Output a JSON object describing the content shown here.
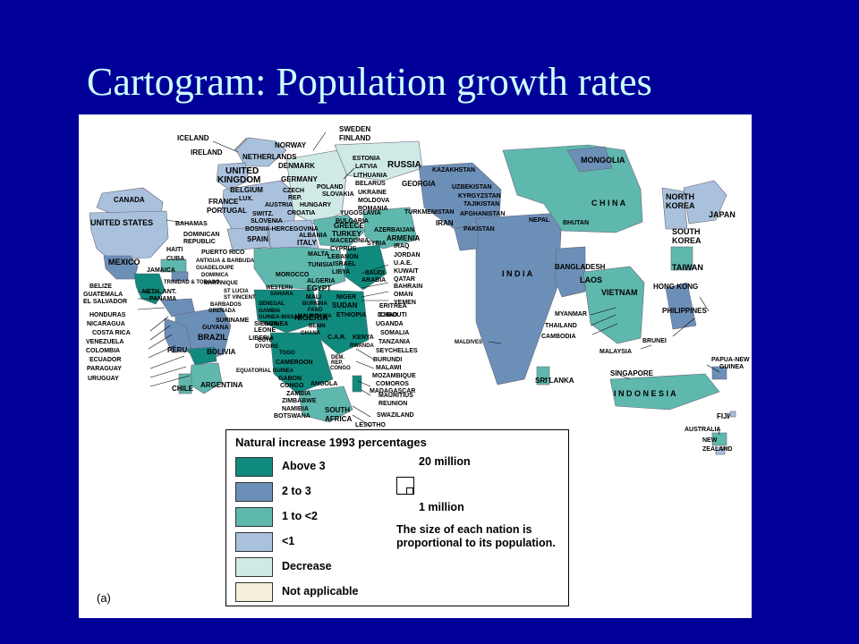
{
  "slide": {
    "title": "Cartogram: Population growth rates"
  },
  "colors": {
    "background": "#000099",
    "title": "#ccffff",
    "above_3": "#0f8a7c",
    "2_to_3": "#6c8fb8",
    "1_to_2": "#5fb8ad",
    "lt_1": "#a9c1dc",
    "decrease": "#cfe9e6",
    "not_applicable": "#f4efd8"
  },
  "legend": {
    "title": "Natural increase 1993 percentages",
    "items": [
      {
        "label": "Above 3",
        "color": "#0f8a7c"
      },
      {
        "label": "2 to 3",
        "color": "#6c8fb8"
      },
      {
        "label": "1 to <2",
        "color": "#5fb8ad"
      },
      {
        "label": "<1",
        "color": "#a9c1dc"
      },
      {
        "label": "Decrease",
        "color": "#cfe9e6"
      },
      {
        "label": "Not applicable",
        "color": "#f4efd8"
      }
    ],
    "scale_large": "20 million",
    "scale_small": "1 million",
    "note": "The size of each nation is proportional to its population."
  },
  "panel_letter": "(a)",
  "country_labels": {
    "iceland": "ICELAND",
    "sweden": "SWEDEN",
    "finland": "FINLAND",
    "norway": "NORWAY",
    "ireland": "IRELAND",
    "netherlands": "NETHERLANDS",
    "denmark": "DENMARK",
    "estonia": "ESTONIA",
    "russia": "RUSSIA",
    "latvia": "LATVIA",
    "lithuania": "LITHUANIA",
    "kazakhstan": "KAZAKHSTAN",
    "mongolia": "MONGOLIA",
    "united_kingdom_1": "UNITED",
    "united_kingdom_2": "KINGDOM",
    "germany": "GERMANY",
    "belarus": "BELARUS",
    "poland": "POLAND",
    "georgia": "GEORGIA",
    "uzbekistan": "UZBEKISTAN",
    "kyrgyzstan": "KYRGYZSTAN",
    "tajikistan": "TAJIKISTAN",
    "belgium": "BELGIUM",
    "czech": "CZECH",
    "rep": "REP.",
    "slovakia": "SLOVAKIA",
    "ukraine": "UKRAINE",
    "moldova": "MOLDOVA",
    "lux": "LUX.",
    "france": "FRANCE",
    "austria": "AUSTRIA",
    "hungary": "HUNGARY",
    "romania": "ROMANIA",
    "canada": "CANADA",
    "portugal": "PORTUGAL",
    "switz": "SWITZ.",
    "croatia": "CROATIA",
    "yugoslavia": "YUGOSLAVIA",
    "slovenia": "SLOVENIA",
    "bulgaria": "BULGARIA",
    "turkmenistan": "TURKMENISTAN",
    "afghanistan": "AFGHANISTAN",
    "iran": "IRAN",
    "china": "C H I N A",
    "north_korea_1": "NORTH",
    "north_korea_2": "KOREA",
    "japan": "JAPAN",
    "united_states": "UNITED STATES",
    "bahamas": "BAHAMAS",
    "bosnia": "BOSNIA-HERCEGOVINA",
    "greece": "GREECE",
    "spain": "SPAIN",
    "albania": "ALBANIA",
    "azerbaijan": "AZERBAIJAN",
    "pakistan": "PAKISTAN",
    "nepal": "NEPAL",
    "bhutan": "BHUTAN",
    "south_korea_1": "SOUTH",
    "south_korea_2": "KOREA",
    "dominican_1": "DOMINICAN",
    "dominican_2": "REPUBLIC",
    "italy": "ITALY",
    "turkey": "TURKEY",
    "macedonia": "MACEDONIA",
    "armenia": "ARMENIA",
    "haiti": "HAITI",
    "cuba": "CUBA",
    "puerto_rico": "PUERTO RICO",
    "antigua": "ANTIGUA & BARBUDA",
    "malta": "MALTA",
    "cyprus": "CYPRUS",
    "syria": "SYRIA",
    "iraq": "IRAQ",
    "lebanon": "LEBANON",
    "jordan": "JORDAN",
    "mexico": "MEXICO",
    "jamaica": "JAMAICA",
    "guadeloupe": "GUADELOUPE",
    "tunisia": "TUNISIA",
    "israel": "ISRAEL",
    "uae": "U.A.E.",
    "dominica": "DOMINICA",
    "morocco": "MOROCCO",
    "libya": "LIBYA",
    "kuwait": "KUWAIT",
    "india": "I N D I A",
    "bangladesh": "BANGLADESH",
    "taiwan": "TAIWAN",
    "trinidad": "TRINIDAD & TOBAGO",
    "algeria": "ALGERIA",
    "saudi_1": "SAUDI",
    "saudi_2": "ARABIA",
    "qatar": "QATAR",
    "belize": "BELIZE",
    "martinique": "MARTINIQUE",
    "western_sahara_1": "WESTERN",
    "western_sahara_2": "SAHARA",
    "egypt": "EGYPT",
    "bahrain": "BAHRAIN",
    "guatemala": "GUATEMALA",
    "neth_ant": "NETH. ANT.",
    "st_lucia": "ST LUCIA",
    "mali": "MALI",
    "oman": "OMAN",
    "laos": "LAOS",
    "hong_kong": "HONG KONG",
    "el_salvador": "EL SALVADOR",
    "panama": "PANAMA",
    "st_vincent": "ST VINCENT",
    "yemen": "YEMEN",
    "barbados": "BARBADOS",
    "niger": "NIGER",
    "vietnam": "VIETNAM",
    "senegal": "SENEGAL",
    "burkina_1": "BURKINA",
    "burkina_2": "FASO",
    "honduras": "HONDURAS",
    "grenada": "GRENADA",
    "gambia": "GAMBIA",
    "sudan": "SUDAN",
    "eritrea": "ERITREA",
    "nicaragua": "NICARAGUA",
    "guinea_bissau": "GUINEA-BISSAU",
    "mauritania": "MAURITANIA",
    "chad": "CHAD",
    "philippines": "PHILIPPINES",
    "costa_rica": "COSTA RICA",
    "suriname": "SURINAME",
    "guinea": "GUINEA",
    "nigeria": "NIGERIA",
    "ethiopia": "ETHIOPIA",
    "djibouti": "DJIBOUTI",
    "myanmar": "MYANMAR",
    "venezuela": "VENEZUELA",
    "guyana": "GUYANA",
    "sierra_1": "SIERRA",
    "sierra_2": "LEONE",
    "benin": "BENIN",
    "thailand": "THAILAND",
    "colombia": "COLOMBIA",
    "brazil": "BRAZIL",
    "liberia": "LIBERIA",
    "uganda": "UGANDA",
    "ecuador": "ECUADOR",
    "cote_1": "CÔTE",
    "cote_2": "D'IVOIRE",
    "somalia": "SOMALIA",
    "cambodia": "CAMBODIA",
    "maldives": "MALDIVES",
    "ghana": "GHANA",
    "car": "C.A.R.",
    "kenya": "KENYA",
    "tanzania": "TANZANIA",
    "malaysia": "MALAYSIA",
    "brunei": "BRUNEI",
    "peru": "PERU",
    "bolivia": "BOLIVIA",
    "togo": "TOGO",
    "rwanda": "RWANDA",
    "seychelles": "SEYCHELLES",
    "paraguay": "PARAGUAY",
    "cameroon": "CAMEROON",
    "dem_1": "DEM.",
    "dem_2": "REP.",
    "burundi": "BURUNDI",
    "uruguay": "URUGUAY",
    "eq_guinea": "EQUATORIAL GUINEA",
    "congo_r": "CONGO",
    "malawi": "MALAWI",
    "papua_1": "PAPUA-NEW",
    "papua_2": "GUINEA",
    "gabon": "GABON",
    "mozambique": "MOZAMBIQUE",
    "singapore": "SINGAPORE",
    "chile": "CHILE",
    "argentina": "ARGENTINA",
    "congo": "CONGO",
    "angola": "ANGOLA",
    "comoros": "COMOROS",
    "sri_lanka": "SRI LANKA",
    "madagascar": "MADAGASCAR",
    "indonesia": "I N D O N E S I A",
    "zambia": "ZAMBIA",
    "mauritius": "MAURITIUS",
    "zimbabwe": "ZIMBABWE",
    "reunion": "REUNION",
    "namibia": "NAMIBIA",
    "botswana": "BOTSWANA",
    "south_africa_1": "SOUTH",
    "south_africa_2": "AFRICA",
    "swaziland": "SWAZILAND",
    "fiji": "FIJI",
    "lesotho": "LESOTHO",
    "australia": "AUSTRALIA",
    "new_zealand_1": "NEW",
    "new_zealand_2": "ZEALAND"
  }
}
